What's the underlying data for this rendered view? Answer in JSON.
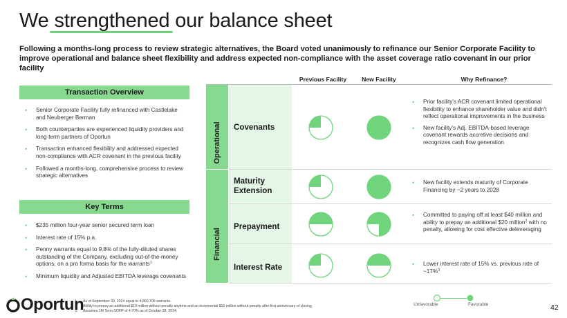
{
  "title": {
    "prefix": "We",
    "highlight": "strengthened",
    "suffix": "our balance sheet"
  },
  "subtitle": "Following a months-long process to review strategic alternatives, the Board voted unanimously to refinance our Senior Corporate Facility to improve operational and balance sheet flexibility and address expected non-compliance with the asset coverage ratio covenant in our prior facility",
  "transaction_overview": {
    "header": "Transaction Overview",
    "bullets": [
      "Senior Corporate Facility fully refinanced with Castlelake and Neuberger Berman",
      "Both counterparties are experienced liquidity providers and long-term partners of Oportun",
      "Transaction enhanced flexibility and addressed expected non-compliance with ACR covenant in the previous facility",
      "Followed a months-long, comprehensive process to review strategic alternatives"
    ]
  },
  "key_terms": {
    "header": "Key Terms",
    "bullets": [
      "$235 million four-year senior secured term loan",
      "Interest rate of 15% p.a.",
      "Penny warrants equal to 9.8% of the fully-diluted shares outstanding of the Company, excluding out-of-the-money options, on a pro forma basis for the warrants",
      "Minimum liquidity and Adjusted EBITDA leverage covenants"
    ],
    "warrant_footnote": "1"
  },
  "columns": {
    "previous": "Previous Facility",
    "new": "New Facility",
    "why": "Why Refinance?"
  },
  "groups": {
    "operational": "Operational",
    "financial": "Financial"
  },
  "rows": [
    {
      "label_line1": "Covenants",
      "label_line2": "",
      "previous_score": 0.25,
      "new_score": 1.0,
      "why": [
        "Prior facility's ACR covenant limited operational flexibility to enhance shareholder value and didn't reflect operational improvements in the business",
        "New facility's Adj. EBITDA-based leverage covenant rewards accretive decisions and recognizes cash flow generation"
      ]
    },
    {
      "label_line1": "Maturity",
      "label_line2": "Extension",
      "previous_score": 0.25,
      "new_score": 1.0,
      "why": [
        "New facility extends maturity of Corporate Financing by ~2 years to 2028"
      ]
    },
    {
      "label_line1": "Prepayment",
      "label_line2": "",
      "previous_score": 0.5,
      "new_score": 0.75,
      "why": [
        "Committed to paying off at least $40 million and ability to prepay an additional $20 million with no penalty, allowing for cost effective deleveraging"
      ],
      "footnote": "2"
    },
    {
      "label_line1": "Interest Rate",
      "label_line2": "",
      "previous_score": 0.25,
      "new_score": 0.5,
      "why": [
        "Lower interest rate of 15% vs. previous rate of ~17%"
      ],
      "footnote": "3"
    }
  ],
  "footer": {
    "logo": "Oportun",
    "footnotes": [
      {
        "n": "1.",
        "text": "As of September 30, 2024 equal to 4,860,706 warrants."
      },
      {
        "n": "2.",
        "text": "Ability to prepay an additional $10 million without penalty anytime and an incremental $10 million without penalty after first anniversary of closing."
      },
      {
        "n": "3.",
        "text": "Assumes 1M Term SOFR of 4.70% as of October 28, 2024."
      }
    ],
    "legend_unfavorable": "Unfavorable",
    "legend_favorable": "Favorable",
    "page_number": "42"
  },
  "colors": {
    "accent": "#6fd47b",
    "band": "#86d98f",
    "row_bg": "#e4f6e6",
    "text": "#1a1a1a"
  }
}
